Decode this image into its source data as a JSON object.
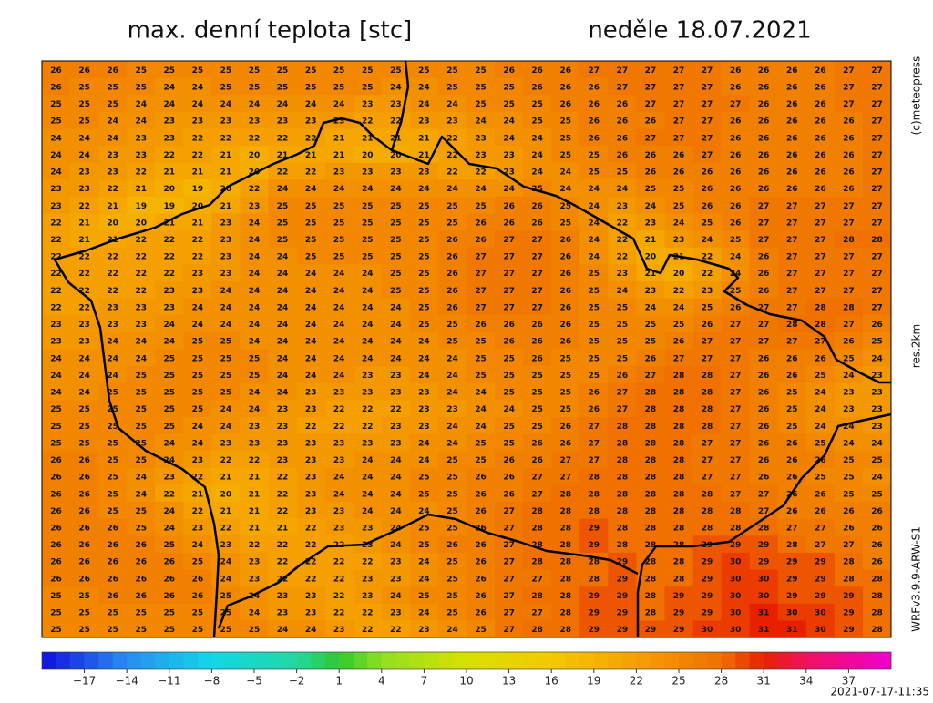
{
  "map": {
    "title": "max. denní teplota [stc]",
    "date": "neděle 18.07.2021",
    "copyright": "(c)meteopress",
    "resolution": "res.2km",
    "model": "WRFv3.9.9-ARW-S1",
    "timestamp": "2021-07-17-11:35",
    "colorbar": {
      "range": [
        -20,
        40
      ],
      "stops": [
        [
          -20,
          "#1010e0"
        ],
        [
          -14,
          "#2a8cf0"
        ],
        [
          -8,
          "#10d8e8"
        ],
        [
          -2,
          "#20d8a0"
        ],
        [
          1,
          "#30c830"
        ],
        [
          4,
          "#90e020"
        ],
        [
          10,
          "#d8e000"
        ],
        [
          16,
          "#f5c800"
        ],
        [
          22,
          "#f5a000"
        ],
        [
          28,
          "#f07000"
        ],
        [
          31,
          "#e82000"
        ],
        [
          34,
          "#f01060"
        ],
        [
          40,
          "#f000d0"
        ]
      ],
      "ticks": [
        {
          "value": -17,
          "label": "−17"
        },
        {
          "value": -14,
          "label": "−14"
        },
        {
          "value": -11,
          "label": "−11"
        },
        {
          "value": -8,
          "label": "−8"
        },
        {
          "value": -5,
          "label": "−5"
        },
        {
          "value": -2,
          "label": "−2"
        },
        1,
        4,
        7,
        10,
        13,
        16,
        19,
        22,
        25,
        28,
        31,
        34,
        37
      ]
    },
    "grid": [
      [
        26,
        26,
        26,
        25,
        25,
        25,
        25,
        25,
        25,
        25,
        25,
        25,
        25,
        25,
        25,
        25,
        26,
        26,
        26,
        27,
        27,
        27,
        27,
        27,
        26,
        26,
        26,
        26,
        27,
        27
      ],
      [
        26,
        25,
        25,
        25,
        24,
        24,
        25,
        25,
        25,
        25,
        25,
        25,
        24,
        24,
        25,
        25,
        25,
        26,
        26,
        26,
        27,
        27,
        27,
        27,
        26,
        26,
        26,
        26,
        27,
        27
      ],
      [
        25,
        25,
        25,
        24,
        24,
        24,
        24,
        24,
        24,
        24,
        24,
        23,
        23,
        24,
        24,
        25,
        25,
        25,
        26,
        26,
        26,
        27,
        27,
        27,
        27,
        26,
        26,
        26,
        27,
        27
      ],
      [
        25,
        25,
        24,
        24,
        23,
        23,
        23,
        23,
        23,
        23,
        23,
        22,
        22,
        23,
        23,
        24,
        24,
        25,
        25,
        26,
        26,
        26,
        27,
        27,
        26,
        26,
        26,
        26,
        26,
        27
      ],
      [
        24,
        24,
        24,
        23,
        23,
        22,
        22,
        22,
        22,
        22,
        21,
        21,
        21,
        21,
        22,
        23,
        24,
        24,
        25,
        26,
        26,
        27,
        27,
        27,
        26,
        26,
        26,
        26,
        26,
        27
      ],
      [
        24,
        24,
        23,
        23,
        22,
        22,
        21,
        20,
        21,
        21,
        21,
        20,
        20,
        21,
        22,
        23,
        23,
        24,
        25,
        25,
        26,
        26,
        26,
        27,
        26,
        26,
        26,
        26,
        26,
        27
      ],
      [
        24,
        23,
        23,
        22,
        21,
        21,
        21,
        20,
        22,
        22,
        23,
        23,
        23,
        23,
        22,
        22,
        23,
        24,
        24,
        25,
        25,
        26,
        26,
        26,
        26,
        26,
        26,
        26,
        26,
        27
      ],
      [
        23,
        23,
        22,
        21,
        20,
        19,
        20,
        22,
        24,
        24,
        24,
        24,
        24,
        24,
        24,
        24,
        24,
        25,
        24,
        24,
        24,
        25,
        25,
        26,
        26,
        26,
        26,
        26,
        26,
        27
      ],
      [
        23,
        22,
        21,
        19,
        19,
        20,
        21,
        23,
        25,
        25,
        25,
        25,
        25,
        25,
        25,
        25,
        26,
        26,
        25,
        24,
        23,
        24,
        25,
        26,
        26,
        27,
        27,
        27,
        27,
        27
      ],
      [
        22,
        21,
        20,
        20,
        21,
        21,
        23,
        24,
        25,
        25,
        25,
        25,
        25,
        25,
        25,
        26,
        26,
        26,
        25,
        24,
        22,
        23,
        24,
        25,
        26,
        27,
        27,
        27,
        27,
        27
      ],
      [
        22,
        21,
        21,
        22,
        22,
        22,
        23,
        24,
        25,
        25,
        25,
        25,
        25,
        25,
        26,
        26,
        27,
        27,
        26,
        24,
        22,
        21,
        23,
        24,
        25,
        27,
        27,
        27,
        28,
        28
      ],
      [
        22,
        22,
        22,
        22,
        22,
        22,
        23,
        24,
        24,
        25,
        25,
        25,
        25,
        25,
        26,
        27,
        27,
        27,
        26,
        24,
        22,
        20,
        21,
        22,
        24,
        26,
        27,
        27,
        27,
        27
      ],
      [
        22,
        22,
        22,
        22,
        22,
        23,
        23,
        24,
        24,
        24,
        24,
        24,
        25,
        25,
        26,
        27,
        27,
        27,
        26,
        25,
        23,
        21,
        20,
        22,
        24,
        26,
        27,
        27,
        27,
        27
      ],
      [
        22,
        22,
        22,
        22,
        23,
        23,
        24,
        24,
        24,
        24,
        24,
        24,
        25,
        25,
        26,
        27,
        27,
        27,
        26,
        25,
        24,
        23,
        22,
        23,
        25,
        26,
        27,
        27,
        27,
        27
      ],
      [
        22,
        22,
        23,
        23,
        23,
        24,
        24,
        24,
        24,
        24,
        24,
        24,
        24,
        25,
        26,
        27,
        27,
        27,
        26,
        25,
        25,
        24,
        24,
        25,
        26,
        27,
        27,
        28,
        28,
        27
      ],
      [
        23,
        23,
        23,
        23,
        24,
        24,
        24,
        24,
        24,
        24,
        24,
        24,
        24,
        25,
        25,
        26,
        26,
        26,
        26,
        25,
        25,
        25,
        25,
        26,
        27,
        27,
        28,
        28,
        27,
        26
      ],
      [
        23,
        23,
        24,
        24,
        24,
        25,
        25,
        24,
        24,
        24,
        24,
        24,
        24,
        24,
        25,
        25,
        26,
        26,
        26,
        25,
        25,
        25,
        26,
        27,
        27,
        27,
        27,
        27,
        26,
        25
      ],
      [
        24,
        24,
        24,
        24,
        25,
        25,
        25,
        25,
        24,
        24,
        24,
        24,
        24,
        24,
        24,
        25,
        25,
        26,
        25,
        25,
        25,
        26,
        27,
        27,
        27,
        26,
        26,
        26,
        25,
        24
      ],
      [
        24,
        24,
        24,
        25,
        25,
        25,
        25,
        25,
        24,
        24,
        24,
        23,
        23,
        24,
        24,
        25,
        25,
        25,
        25,
        25,
        26,
        27,
        28,
        28,
        27,
        26,
        26,
        25,
        24,
        23
      ],
      [
        24,
        24,
        25,
        25,
        25,
        25,
        25,
        24,
        24,
        23,
        23,
        23,
        23,
        23,
        24,
        24,
        25,
        25,
        25,
        26,
        27,
        28,
        28,
        28,
        27,
        26,
        25,
        24,
        23,
        23
      ],
      [
        25,
        25,
        25,
        25,
        25,
        25,
        24,
        24,
        23,
        23,
        22,
        22,
        22,
        23,
        23,
        24,
        24,
        25,
        25,
        26,
        27,
        28,
        28,
        28,
        27,
        26,
        25,
        24,
        23,
        23
      ],
      [
        25,
        25,
        25,
        25,
        25,
        24,
        24,
        23,
        23,
        22,
        22,
        22,
        23,
        23,
        24,
        24,
        25,
        25,
        26,
        27,
        28,
        28,
        28,
        28,
        27,
        26,
        25,
        24,
        24,
        23
      ],
      [
        25,
        25,
        25,
        25,
        24,
        24,
        23,
        23,
        23,
        23,
        23,
        23,
        23,
        24,
        24,
        25,
        25,
        26,
        26,
        27,
        28,
        28,
        28,
        27,
        27,
        26,
        26,
        25,
        24,
        24
      ],
      [
        26,
        26,
        25,
        25,
        24,
        23,
        22,
        22,
        23,
        23,
        23,
        24,
        24,
        24,
        25,
        25,
        26,
        26,
        27,
        27,
        28,
        28,
        28,
        27,
        27,
        26,
        26,
        26,
        25,
        25
      ],
      [
        26,
        26,
        25,
        24,
        23,
        22,
        21,
        21,
        22,
        23,
        24,
        24,
        24,
        25,
        25,
        26,
        26,
        27,
        27,
        28,
        28,
        28,
        28,
        27,
        27,
        26,
        26,
        25,
        25,
        24
      ],
      [
        26,
        26,
        25,
        24,
        22,
        21,
        20,
        21,
        22,
        23,
        24,
        24,
        24,
        25,
        25,
        26,
        26,
        27,
        28,
        28,
        28,
        28,
        28,
        28,
        27,
        27,
        26,
        26,
        25,
        25
      ],
      [
        26,
        26,
        25,
        25,
        24,
        22,
        21,
        21,
        22,
        23,
        23,
        24,
        24,
        24,
        25,
        26,
        27,
        28,
        28,
        28,
        28,
        28,
        28,
        28,
        28,
        27,
        26,
        26,
        26,
        26
      ],
      [
        26,
        26,
        26,
        25,
        24,
        23,
        22,
        21,
        21,
        22,
        23,
        23,
        24,
        25,
        25,
        26,
        27,
        28,
        28,
        29,
        28,
        28,
        28,
        28,
        28,
        28,
        27,
        27,
        26,
        26
      ],
      [
        26,
        26,
        26,
        26,
        25,
        24,
        23,
        22,
        22,
        22,
        22,
        23,
        24,
        25,
        26,
        26,
        27,
        28,
        28,
        29,
        28,
        28,
        28,
        29,
        29,
        29,
        28,
        27,
        27,
        26
      ],
      [
        26,
        26,
        26,
        26,
        26,
        25,
        24,
        23,
        22,
        22,
        22,
        22,
        23,
        24,
        25,
        26,
        27,
        28,
        28,
        28,
        29,
        28,
        28,
        29,
        30,
        29,
        29,
        29,
        28,
        26
      ],
      [
        26,
        26,
        26,
        26,
        26,
        26,
        24,
        23,
        22,
        22,
        22,
        23,
        23,
        24,
        25,
        26,
        27,
        27,
        28,
        28,
        29,
        28,
        28,
        29,
        30,
        30,
        29,
        29,
        28,
        28
      ],
      [
        25,
        25,
        26,
        26,
        26,
        26,
        25,
        24,
        23,
        23,
        22,
        23,
        24,
        25,
        25,
        26,
        27,
        28,
        28,
        29,
        29,
        28,
        29,
        29,
        30,
        30,
        29,
        29,
        29,
        28
      ],
      [
        25,
        25,
        25,
        25,
        25,
        25,
        25,
        24,
        23,
        23,
        22,
        22,
        23,
        24,
        25,
        26,
        27,
        27,
        28,
        29,
        29,
        28,
        29,
        29,
        30,
        31,
        30,
        30,
        29,
        28
      ],
      [
        25,
        25,
        25,
        25,
        25,
        25,
        25,
        25,
        24,
        24,
        23,
        22,
        22,
        23,
        24,
        25,
        27,
        28,
        28,
        29,
        29,
        29,
        29,
        30,
        30,
        31,
        31,
        30,
        29,
        28
      ]
    ]
  }
}
